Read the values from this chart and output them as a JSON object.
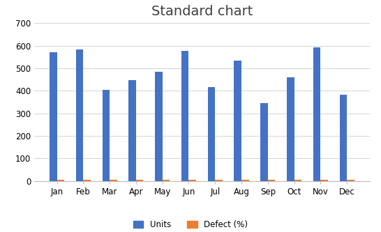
{
  "months": [
    "Jan",
    "Feb",
    "Mar",
    "Apr",
    "May",
    "Jun",
    "Jul",
    "Aug",
    "Sep",
    "Oct",
    "Nov",
    "Dec"
  ],
  "units": [
    570,
    583,
    403,
    447,
    485,
    578,
    418,
    533,
    345,
    460,
    592,
    381
  ],
  "defect": [
    5,
    6,
    5,
    5,
    5,
    5,
    4,
    5,
    6,
    5,
    4,
    6
  ],
  "units_color": "#4472C4",
  "defect_color": "#ED7D31",
  "title": "Standard chart",
  "title_fontsize": 14,
  "ylim": [
    0,
    700
  ],
  "yticks": [
    0,
    100,
    200,
    300,
    400,
    500,
    600,
    700
  ],
  "grid_color": "#D3D3D3",
  "background_color": "#FFFFFF",
  "legend_labels": [
    "Units",
    "Defect (%)"
  ],
  "bar_width": 0.28
}
